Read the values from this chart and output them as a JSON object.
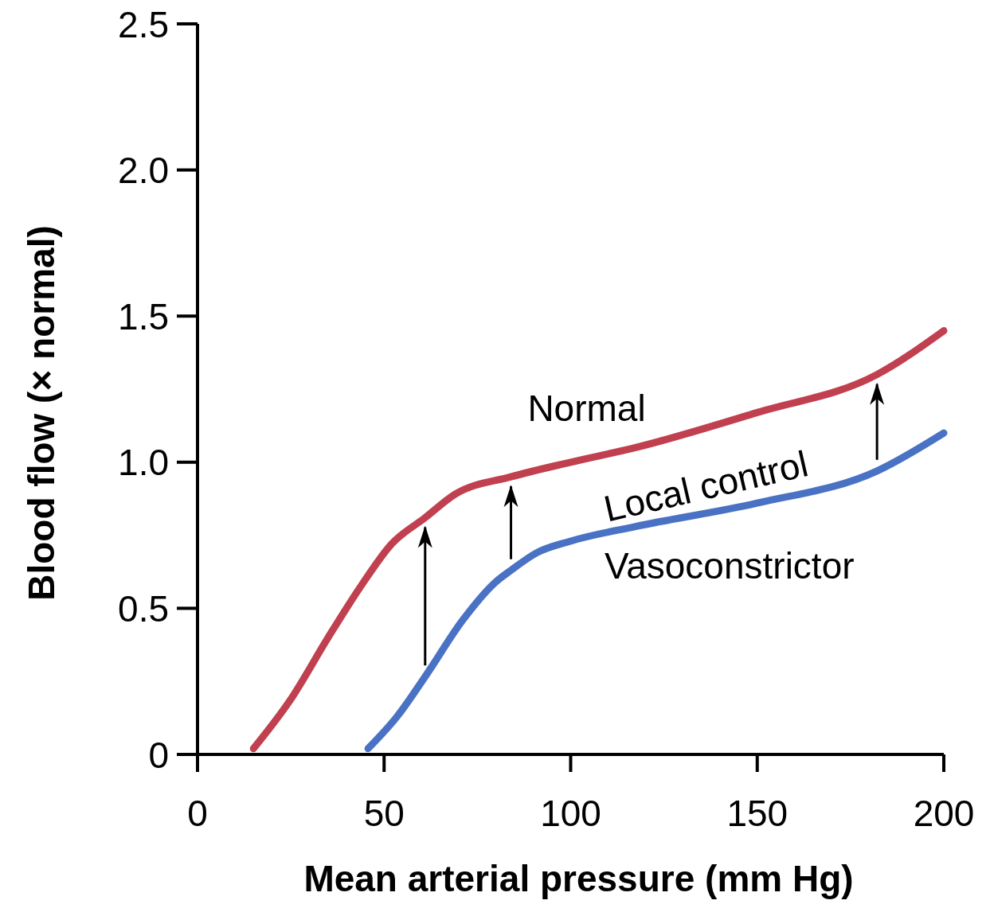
{
  "chart_data": {
    "type": "line",
    "xlabel": "Mean arterial pressure (mm Hg)",
    "ylabel": "Blood flow (× normal)",
    "xlim": [
      0,
      200
    ],
    "xticks": [
      0,
      50,
      100,
      150,
      200
    ],
    "ylim": [
      0,
      2.5
    ],
    "yticks": [
      0,
      {
        "value": 0.5,
        "label": "0.5"
      },
      {
        "value": 1,
        "label": "1.0"
      },
      {
        "value": 1.5,
        "label": "1.5"
      },
      {
        "value": 2,
        "label": "2.0"
      },
      {
        "value": 2.5,
        "label": "2.5"
      }
    ],
    "grid": false,
    "marker": "none",
    "line_style": "solid",
    "annotations": [
      "Local control"
    ],
    "series": [
      {
        "name": "Normal",
        "color": "#c0404f",
        "x": [
          15,
          24.8,
          35,
          44,
          52,
          61,
          69,
          84,
          100,
          117.4,
          150,
          182.1,
          200
        ],
        "values": [
          0.02,
          0.185,
          0.4,
          0.58,
          0.72,
          0.81,
          0.89,
          0.95,
          1.0,
          1.05,
          1.17,
          1.3,
          1.45
        ]
      },
      {
        "name": "Vasoconstrictor",
        "color": "#4a72c4",
        "x": [
          45.7,
          53.5,
          61.2,
          71.1,
          79.9,
          84,
          90.9,
          100,
          117.4,
          150,
          182.1,
          200
        ],
        "values": [
          0.02,
          0.13,
          0.27,
          0.46,
          0.59,
          0.63,
          0.69,
          0.73,
          0.78,
          0.86,
          0.97,
          1.1
        ]
      }
    ]
  }
}
